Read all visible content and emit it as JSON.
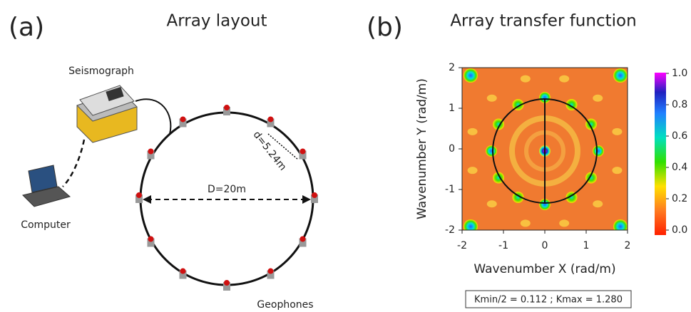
{
  "panel_a": {
    "label": "(a)",
    "title": "Array layout",
    "seismograph": "Seismograph",
    "computer": "Computer",
    "geophones": "Geophones",
    "diameter": "D=20m",
    "spacing": "d=5.24m"
  },
  "panel_b": {
    "label": "(b)",
    "title": "Array transfer function",
    "x_label": "Wavenumber X (rad/m)",
    "y_label": "Wavenumber Y (rad/m)",
    "xlim": [
      -2,
      2
    ],
    "ylim": [
      -2,
      2
    ],
    "xticks": [
      -2,
      -1,
      0,
      1,
      2
    ],
    "yticks": [
      -2,
      -1,
      0,
      1,
      2
    ],
    "colorbar_lim": [
      0,
      1
    ],
    "colorbar_ticks": [
      {
        "value": 0,
        "label": "0.0"
      },
      {
        "value": 0.2,
        "label": "0.2"
      },
      {
        "value": 0.4,
        "label": "0.4"
      },
      {
        "value": 0.6,
        "label": "0.6"
      },
      {
        "value": 0.8,
        "label": "0.8"
      },
      {
        "value": 1,
        "label": "1.0"
      }
    ],
    "annotation": "Kmin/2 = 0.112 ;   Kmax = 1.280"
  }
}
